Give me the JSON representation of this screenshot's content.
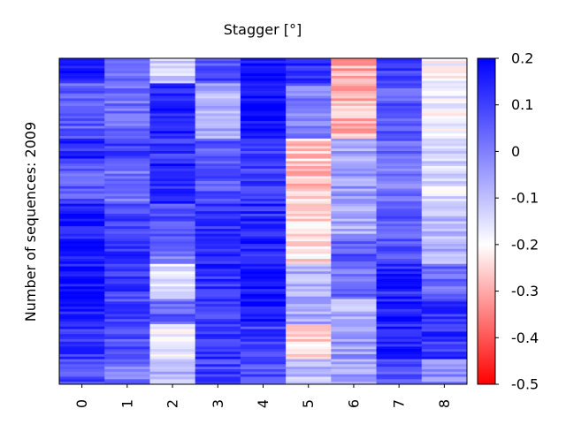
{
  "chart_data": {
    "type": "heatmap",
    "title": "Stagger [°]",
    "ylabel": "Number of sequences: 2009",
    "xlabel": "",
    "columns": [
      "0",
      "1",
      "2",
      "3",
      "4",
      "5",
      "6",
      "7",
      "8"
    ],
    "colorbar": {
      "min": -0.5,
      "max": 0.2,
      "ticks": [
        "0.2",
        "0.1",
        "0",
        "-0.1",
        "-0.2",
        "-0.3",
        "-0.4",
        "-0.5"
      ],
      "tick_values": [
        0.2,
        0.1,
        0,
        -0.1,
        -0.2,
        -0.3,
        -0.4,
        -0.5
      ],
      "colormap": "bwr_r",
      "color_low": "#ff0000",
      "color_mid": "#ffffff",
      "color_high": "#0000ff"
    },
    "row_count": 2009,
    "bands": [
      [
        0.17,
        0.04,
        -0.12,
        0.08,
        0.18,
        0.12,
        -0.3,
        0.1,
        -0.2
      ],
      [
        0.06,
        0.03,
        0.14,
        -0.07,
        0.19,
        0.01,
        -0.29,
        0.06,
        -0.18
      ],
      [
        0.14,
        0.09,
        0.12,
        0.07,
        0.12,
        -0.26,
        -0.06,
        0.04,
        -0.12
      ],
      [
        0.06,
        0.03,
        0.15,
        0.07,
        0.1,
        -0.27,
        -0.05,
        0.02,
        -0.15
      ],
      [
        0.16,
        0.1,
        0.08,
        0.12,
        0.13,
        -0.23,
        -0.06,
        0.06,
        -0.1
      ],
      [
        0.18,
        0.12,
        0.02,
        0.12,
        0.15,
        -0.24,
        0.06,
        0.08,
        -0.08
      ],
      [
        0.17,
        0.11,
        -0.17,
        0.13,
        0.18,
        -0.08,
        0.03,
        0.14,
        0.04
      ],
      [
        0.14,
        0.09,
        0.05,
        0.1,
        0.17,
        -0.06,
        -0.08,
        0.16,
        0.13
      ],
      [
        0.13,
        0.07,
        -0.17,
        0.12,
        0.1,
        -0.25,
        -0.04,
        0.15,
        0.12
      ],
      [
        0.08,
        0.02,
        -0.08,
        0.1,
        0.08,
        -0.1,
        -0.06,
        0.08,
        -0.02
      ]
    ],
    "band_rows": [
      10,
      22,
      10,
      16,
      14,
      10,
      14,
      10,
      14,
      10
    ]
  }
}
